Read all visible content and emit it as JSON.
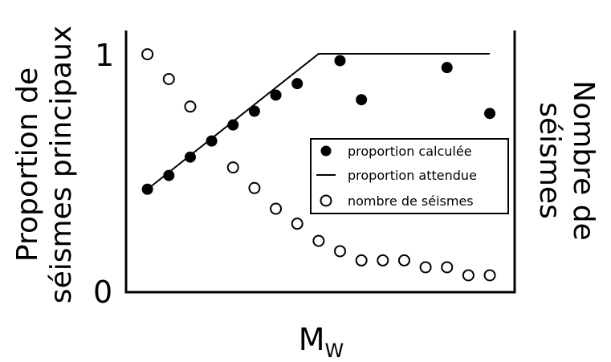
{
  "chart_data": {
    "type": "scatter",
    "xlabel": "M",
    "xlabel_subscript": "W",
    "ylabel_left_line1": "Proportion de",
    "ylabel_left_line2": "séismes principaux",
    "ylabel_right_line1": "Nombre de",
    "ylabel_right_line2": "séismes",
    "ytick_top": "1",
    "ytick_bottom": "0",
    "ylim": [
      0,
      1
    ],
    "xlim": [
      0,
      18
    ],
    "legend_position": "center-right",
    "legend": {
      "filled": "proportion calculée",
      "line": "proportion attendue",
      "open": "nombre de séismes"
    },
    "series": [
      {
        "name": "proportion calculée",
        "style": "filled-circle",
        "x": [
          1,
          2,
          3,
          4,
          5,
          6,
          7,
          8,
          10,
          11,
          15,
          17
        ],
        "y": [
          0.41,
          0.47,
          0.55,
          0.62,
          0.69,
          0.75,
          0.82,
          0.87,
          0.97,
          0.8,
          0.94,
          0.74
        ]
      },
      {
        "name": "proportion attendue",
        "style": "line",
        "x": [
          1,
          9,
          17
        ],
        "y": [
          0.41,
          1.0,
          1.0
        ]
      },
      {
        "name": "nombre de séismes",
        "style": "open-circle",
        "x": [
          1,
          2,
          3,
          5,
          6,
          7,
          8,
          9,
          10,
          11,
          12,
          13,
          14,
          15,
          16,
          17
        ],
        "y": [
          0.998,
          0.89,
          0.77,
          0.505,
          0.415,
          0.325,
          0.26,
          0.185,
          0.14,
          0.1,
          0.1,
          0.1,
          0.07,
          0.07,
          0.035,
          0.035
        ]
      }
    ]
  }
}
